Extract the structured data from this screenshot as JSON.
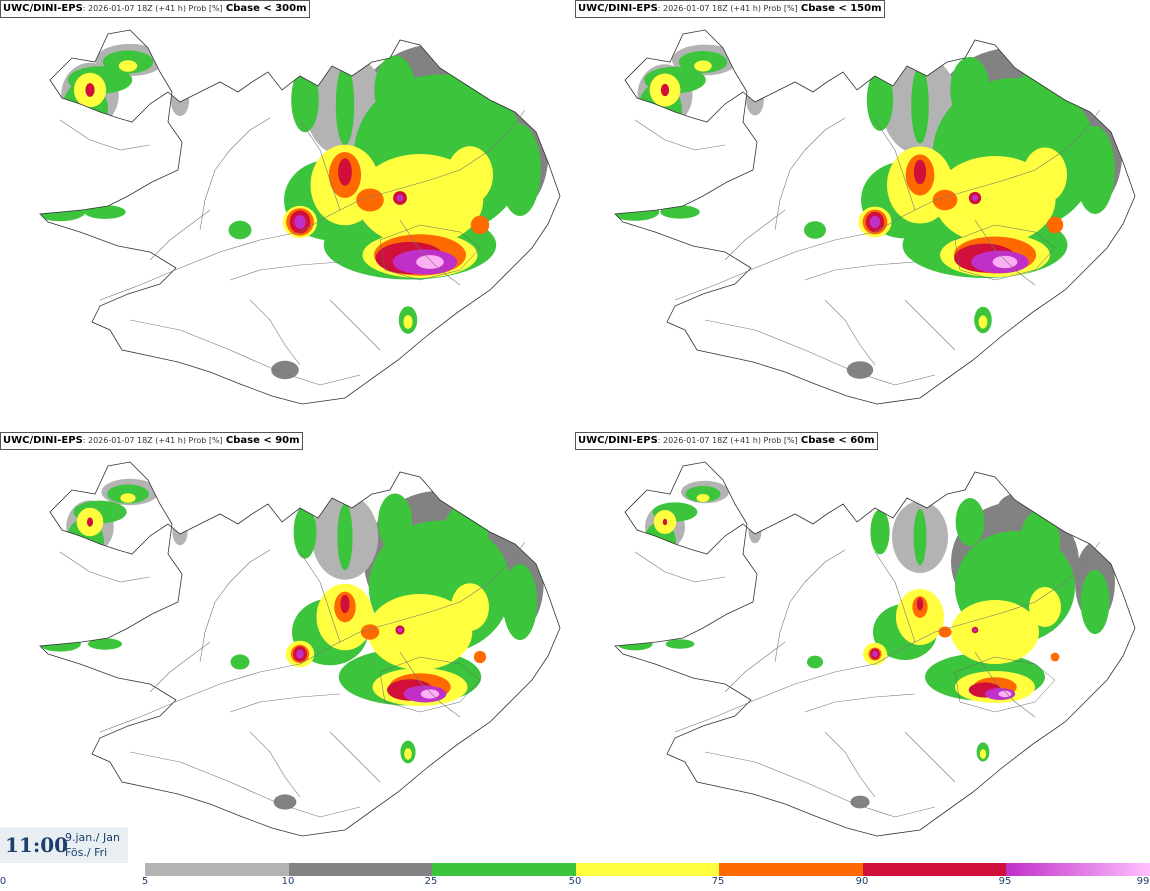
{
  "panels": [
    {
      "model": "UWC/DINI-EPS",
      "info": ": 2026-01-07 18Z (+41 h) Prob [%]",
      "param": "Cbase < 300m",
      "scale": 1.35
    },
    {
      "model": "UWC/DINI-EPS",
      "info": ": 2026-01-07 18Z (+41 h) Prob [%]",
      "param": "Cbase < 150m",
      "scale": 1.1
    },
    {
      "model": "UWC/DINI-EPS",
      "info": ": 2026-01-07 18Z (+41 h) Prob [%]",
      "param": "Cbase < 90m",
      "scale": 0.95
    },
    {
      "model": "UWC/DINI-EPS",
      "info": ": 2026-01-07 18Z (+41 h) Prob [%]",
      "param": "Cbase < 60m",
      "scale": 0.8
    }
  ],
  "time": {
    "clock": "11:00",
    "date_line1": "9.jan./ Jan",
    "date_line2": "Fös./ Fri"
  },
  "legend": {
    "ticks": [
      "0",
      "5",
      "10",
      "25",
      "50",
      "75",
      "90",
      "95",
      "99"
    ],
    "colors": [
      {
        "from": "5",
        "to": "10",
        "color": "#b3b3b3"
      },
      {
        "from": "10",
        "to": "25",
        "color": "#828282"
      },
      {
        "from": "25",
        "to": "50",
        "color": "#3cc43c"
      },
      {
        "from": "50",
        "to": "75",
        "color": "#ffff40"
      },
      {
        "from": "75",
        "to": "90",
        "color": "#ff6a00"
      },
      {
        "from": "90",
        "to": "95",
        "color": "#d0103a"
      },
      {
        "from": "95",
        "to": "99",
        "color": "#c030c8",
        "color_end": "#ffc0ff"
      }
    ]
  }
}
